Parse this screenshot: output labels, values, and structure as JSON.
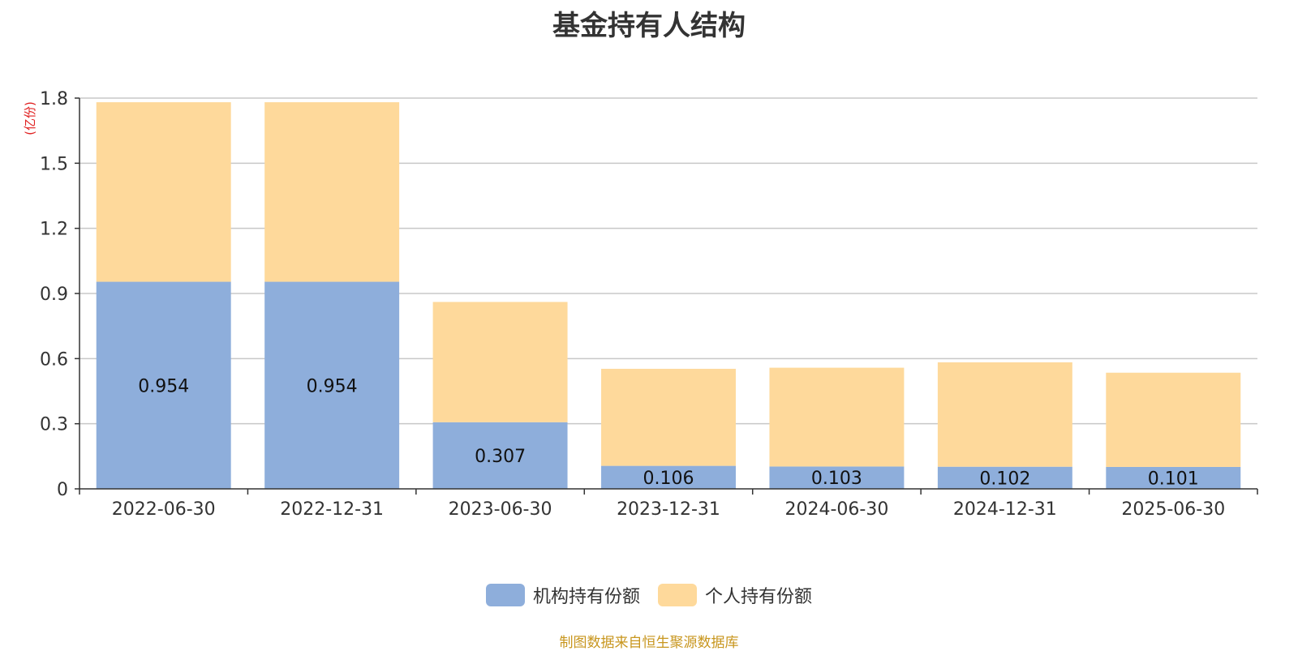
{
  "title": "基金持有人结构",
  "source": "制图数据来自恒生聚源数据库",
  "chart_data": {
    "type": "bar",
    "stacked": true,
    "title": "基金持有人结构",
    "ylabel": "(亿份)",
    "xlabel": "",
    "ylim": [
      0,
      1.8
    ],
    "yticks": [
      "0",
      "0.3",
      "0.6",
      "0.9",
      "1.2",
      "1.5",
      "1.8"
    ],
    "categories": [
      "2022-06-30",
      "2022-12-31",
      "2023-06-30",
      "2023-12-31",
      "2024-06-30",
      "2024-12-31",
      "2025-06-30"
    ],
    "series": [
      {
        "name": "机构持有份额",
        "color": "#8eaedb",
        "values": [
          0.954,
          0.954,
          0.307,
          0.106,
          0.103,
          0.102,
          0.101
        ],
        "labels": [
          "0.954",
          "0.954",
          "0.307",
          "0.106",
          "0.103",
          "0.102",
          "0.101"
        ]
      },
      {
        "name": "个人持有份额",
        "color": "#fed99b",
        "values": [
          0.827,
          0.827,
          0.554,
          0.447,
          0.455,
          0.481,
          0.434
        ]
      }
    ],
    "grid": true,
    "legend": "bottom-center"
  }
}
